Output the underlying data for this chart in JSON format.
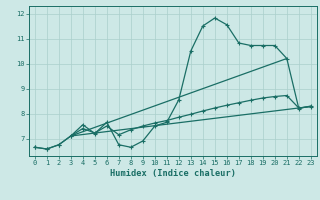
{
  "xlabel": "Humidex (Indice chaleur)",
  "xlim": [
    -0.5,
    23.5
  ],
  "ylim": [
    6.3,
    12.3
  ],
  "yticks": [
    7,
    8,
    9,
    10,
    11,
    12
  ],
  "xticks": [
    0,
    1,
    2,
    3,
    4,
    5,
    6,
    7,
    8,
    9,
    10,
    11,
    12,
    13,
    14,
    15,
    16,
    17,
    18,
    19,
    20,
    21,
    22,
    23
  ],
  "bg_color": "#cde8e6",
  "grid_color": "#aacfcc",
  "line_color": "#1a6e65",
  "series1_x": [
    0,
    1,
    2,
    3,
    4,
    5,
    6,
    7,
    8,
    9,
    10,
    11,
    12,
    13,
    14,
    15,
    16,
    17,
    18,
    19,
    20,
    21,
    22,
    23
  ],
  "series1_y": [
    6.65,
    6.58,
    6.75,
    7.1,
    7.55,
    7.2,
    7.65,
    6.75,
    6.65,
    6.9,
    7.5,
    7.65,
    8.55,
    10.5,
    11.5,
    11.82,
    11.55,
    10.82,
    10.72,
    10.72,
    10.72,
    10.2,
    8.2,
    8.3
  ],
  "series2_x": [
    0,
    1,
    2,
    3,
    4,
    5,
    6,
    7,
    8,
    9,
    10,
    11,
    12,
    13,
    14,
    15,
    16,
    17,
    18,
    19,
    20,
    21,
    22,
    23
  ],
  "series2_y": [
    6.65,
    6.58,
    6.75,
    7.1,
    7.4,
    7.22,
    7.5,
    7.15,
    7.35,
    7.5,
    7.62,
    7.72,
    7.85,
    7.97,
    8.1,
    8.22,
    8.33,
    8.43,
    8.53,
    8.62,
    8.68,
    8.72,
    8.22,
    8.28
  ],
  "series3_x": [
    3,
    23
  ],
  "series3_y": [
    7.1,
    8.28
  ],
  "series4_x": [
    3,
    21
  ],
  "series4_y": [
    7.1,
    10.2
  ]
}
